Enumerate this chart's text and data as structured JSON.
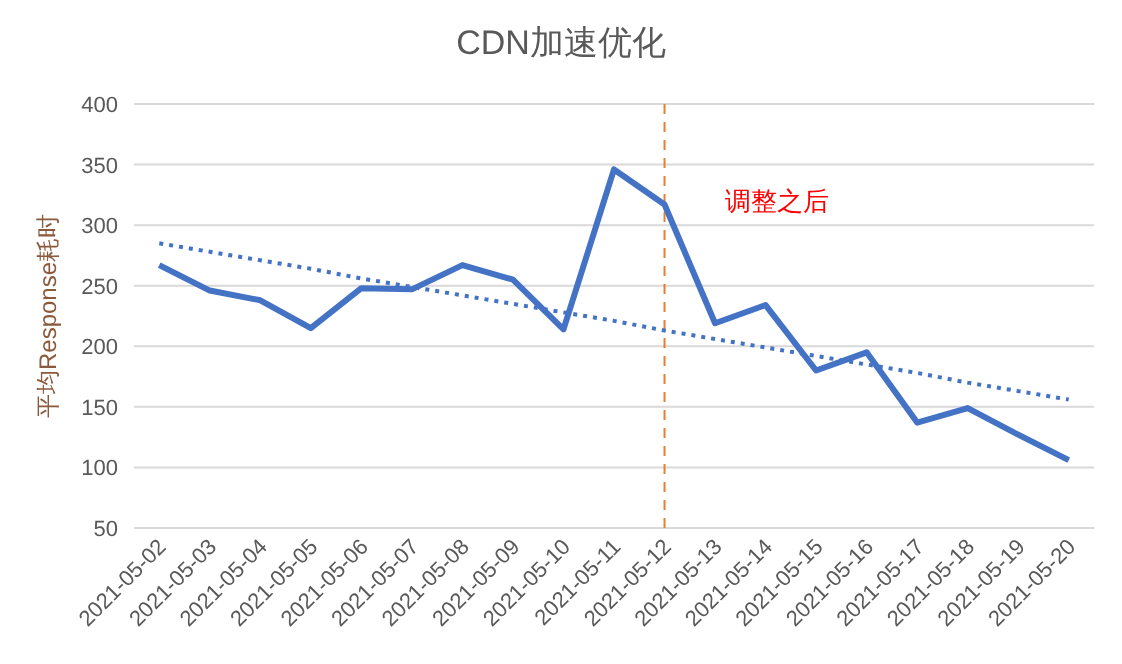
{
  "chart_data": {
    "type": "line",
    "title": "CDN加速优化",
    "ylabel": "平均Response耗时",
    "categories": [
      "2021-05-02",
      "2021-05-03",
      "2021-05-04",
      "2021-05-05",
      "2021-05-06",
      "2021-05-07",
      "2021-05-08",
      "2021-05-09",
      "2021-05-10",
      "2021-05-11",
      "2021-05-12",
      "2021-05-13",
      "2021-05-14",
      "2021-05-15",
      "2021-05-16",
      "2021-05-17",
      "2021-05-18",
      "2021-05-19",
      "2021-05-20"
    ],
    "series": [
      {
        "color": "#4472c4",
        "line_style": "solid",
        "values": [
          267,
          246,
          238,
          215,
          248,
          247,
          267,
          255,
          214,
          346,
          317,
          219,
          234,
          180,
          195,
          137,
          149,
          127,
          106
        ]
      },
      {
        "type": "line",
        "color": "#4472c4",
        "line_style": "dotted",
        "values": [
          285,
          278,
          271,
          264,
          256,
          249,
          242,
          235,
          228,
          221,
          213,
          206,
          199,
          192,
          185,
          178,
          170,
          163,
          156
        ]
      }
    ],
    "ylim": [
      50,
      400
    ],
    "yticks": [
      50,
      100,
      150,
      200,
      250,
      300,
      350,
      400
    ],
    "grid": "y",
    "marker": "none",
    "ref_lines": [
      {
        "axis": "x",
        "value": "2021-05-12",
        "label": "调整之后",
        "color": "#ed7d31",
        "line_style": "dashed"
      }
    ]
  }
}
